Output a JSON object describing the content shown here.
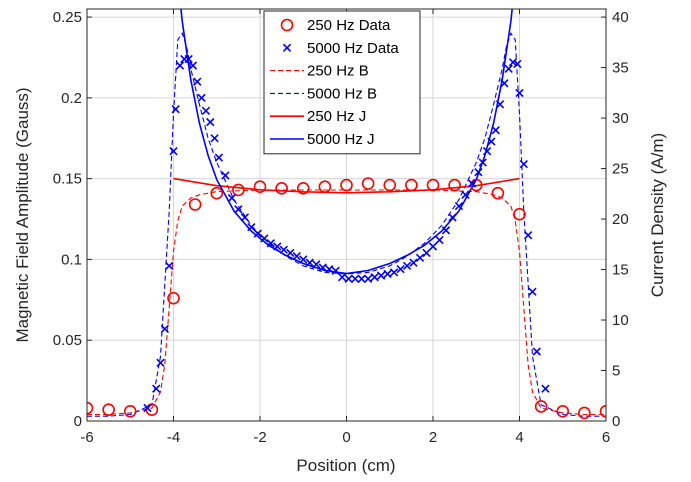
{
  "chart_data": {
    "type": "line",
    "title": "",
    "xlabel": "Position (cm)",
    "ylabel_left": "Magnetic Field Amplitude (Gauss)",
    "ylabel_right": "Current Density (A/m)",
    "xlim": [
      -6,
      6
    ],
    "ylim_left": [
      0,
      0.255
    ],
    "ylim_right": [
      0,
      40.8
    ],
    "xticks": [
      "-6",
      "-4",
      "-2",
      "0",
      "2",
      "4",
      "6"
    ],
    "yticks_left": [
      "0",
      "0.05",
      "0.1",
      "0.15",
      "0.2",
      "0.25"
    ],
    "yticks_right": [
      "0",
      "5",
      "10",
      "15",
      "20",
      "25",
      "30",
      "35",
      "40"
    ],
    "grid": true,
    "legend_position": "top-center",
    "series": [
      {
        "name": "250  Hz Data",
        "axis": "left",
        "style": "circle-marker",
        "color": "#ff0000",
        "x": [
          -6,
          -5.5,
          -5,
          -4.5,
          -4,
          -3.5,
          -3,
          -2.5,
          -2,
          -1.5,
          -1,
          -0.5,
          0,
          0.5,
          1,
          1.5,
          2,
          2.5,
          3,
          3.5,
          4,
          4.5,
          5,
          5.5,
          6
        ],
        "y": [
          0.008,
          0.007,
          0.006,
          0.007,
          0.076,
          0.134,
          0.141,
          0.143,
          0.145,
          0.144,
          0.144,
          0.145,
          0.146,
          0.147,
          0.146,
          0.146,
          0.146,
          0.146,
          0.146,
          0.141,
          0.128,
          0.009,
          0.006,
          0.005,
          0.006
        ]
      },
      {
        "name": "5000 Hz Data",
        "axis": "left",
        "style": "x-marker",
        "color": "#0000ff",
        "x": [
          -4.6,
          -4.4,
          -4.3,
          -4.2,
          -4.1,
          -4.0,
          -3.95,
          -3.85,
          -3.75,
          -3.65,
          -3.55,
          -3.45,
          -3.35,
          -3.25,
          -3.15,
          -3.05,
          -2.95,
          -2.8,
          -2.65,
          -2.5,
          -2.35,
          -2.2,
          -2.05,
          -1.9,
          -1.75,
          -1.6,
          -1.45,
          -1.3,
          -1.15,
          -1.0,
          -0.85,
          -0.7,
          -0.55,
          -0.4,
          -0.25,
          -0.1,
          0.05,
          0.2,
          0.35,
          0.5,
          0.65,
          0.8,
          0.95,
          1.1,
          1.25,
          1.4,
          1.55,
          1.7,
          1.85,
          2.0,
          2.15,
          2.3,
          2.45,
          2.6,
          2.75,
          2.9,
          3.05,
          3.15,
          3.25,
          3.35,
          3.45,
          3.55,
          3.65,
          3.75,
          3.85,
          3.95,
          4.0,
          4.1,
          4.2,
          4.3,
          4.4,
          4.6
        ],
        "y": [
          0.008,
          0.02,
          0.036,
          0.057,
          0.096,
          0.167,
          0.193,
          0.22,
          0.224,
          0.224,
          0.22,
          0.21,
          0.2,
          0.192,
          0.185,
          0.175,
          0.163,
          0.152,
          0.138,
          0.131,
          0.126,
          0.12,
          0.116,
          0.113,
          0.11,
          0.108,
          0.106,
          0.104,
          0.102,
          0.1,
          0.098,
          0.097,
          0.095,
          0.094,
          0.093,
          0.089,
          0.088,
          0.088,
          0.088,
          0.088,
          0.089,
          0.09,
          0.091,
          0.092,
          0.094,
          0.096,
          0.098,
          0.101,
          0.104,
          0.108,
          0.112,
          0.118,
          0.126,
          0.133,
          0.14,
          0.147,
          0.154,
          0.16,
          0.167,
          0.173,
          0.18,
          0.196,
          0.209,
          0.218,
          0.222,
          0.221,
          0.203,
          0.159,
          0.115,
          0.08,
          0.043,
          0.02
        ]
      },
      {
        "name": "250  Hz B",
        "axis": "left",
        "style": "dashed",
        "color": "#ff0000",
        "x": [
          -6,
          -5.5,
          -5,
          -4.5,
          -4.3,
          -4.2,
          -4.1,
          -4.0,
          -3.9,
          -3.8,
          -3.6,
          -3.4,
          -3.0,
          -2.0,
          -1.0,
          0,
          1.0,
          2.0,
          3.0,
          3.4,
          3.6,
          3.8,
          3.9,
          4.0,
          4.1,
          4.2,
          4.3,
          4.5,
          5,
          5.5,
          6
        ],
        "y": [
          0.004,
          0.004,
          0.005,
          0.008,
          0.018,
          0.035,
          0.07,
          0.105,
          0.124,
          0.133,
          0.138,
          0.14,
          0.142,
          0.143,
          0.143,
          0.143,
          0.143,
          0.143,
          0.142,
          0.14,
          0.138,
          0.133,
          0.124,
          0.105,
          0.07,
          0.035,
          0.018,
          0.008,
          0.005,
          0.004,
          0.004
        ]
      },
      {
        "name": "5000 Hz B",
        "axis": "left",
        "style": "dashed",
        "color": "#0000ff",
        "x": [
          -6,
          -5.5,
          -5,
          -4.5,
          -4.3,
          -4.1,
          -4.0,
          -3.9,
          -3.8,
          -3.7,
          -3.6,
          -3.4,
          -3.2,
          -3.0,
          -2.6,
          -2.2,
          -1.8,
          -1.4,
          -1.0,
          -0.5,
          0,
          0.5,
          1.0,
          1.4,
          1.8,
          2.2,
          2.6,
          3.0,
          3.2,
          3.4,
          3.6,
          3.7,
          3.8,
          3.9,
          4.0,
          4.1,
          4.3,
          4.5,
          5,
          5.5,
          6
        ],
        "y": [
          0.003,
          0.003,
          0.004,
          0.01,
          0.04,
          0.13,
          0.19,
          0.236,
          0.24,
          0.232,
          0.218,
          0.196,
          0.175,
          0.16,
          0.137,
          0.121,
          0.11,
          0.102,
          0.096,
          0.092,
          0.091,
          0.092,
          0.096,
          0.102,
          0.11,
          0.121,
          0.137,
          0.16,
          0.175,
          0.196,
          0.218,
          0.232,
          0.24,
          0.236,
          0.19,
          0.13,
          0.04,
          0.01,
          0.004,
          0.003,
          0.003
        ]
      },
      {
        "name": "250  Hz J",
        "axis": "right",
        "style": "solid",
        "color": "#ff0000",
        "x": [
          -4,
          -3,
          -2,
          -1,
          0,
          1,
          2,
          3,
          4
        ],
        "y": [
          24.0,
          23.3,
          22.9,
          22.7,
          22.6,
          22.7,
          22.9,
          23.3,
          24.0
        ]
      },
      {
        "name": "5000 Hz J",
        "axis": "right",
        "style": "solid",
        "color": "#0000ff",
        "x": [
          -4,
          -3.8,
          -3.6,
          -3.4,
          -3.2,
          -3.0,
          -2.6,
          -2.2,
          -1.8,
          -1.4,
          -1.0,
          -0.5,
          0,
          0.5,
          1.0,
          1.4,
          1.8,
          2.2,
          2.6,
          3.0,
          3.2,
          3.4,
          3.6,
          3.8,
          4
        ],
        "y": [
          48.0,
          39.6,
          33.8,
          29.5,
          26.3,
          23.9,
          20.8,
          18.8,
          17.4,
          16.4,
          15.6,
          14.9,
          14.6,
          14.9,
          15.6,
          16.4,
          17.4,
          18.8,
          20.8,
          23.9,
          26.3,
          29.5,
          33.8,
          39.6,
          48.0
        ]
      }
    ]
  }
}
